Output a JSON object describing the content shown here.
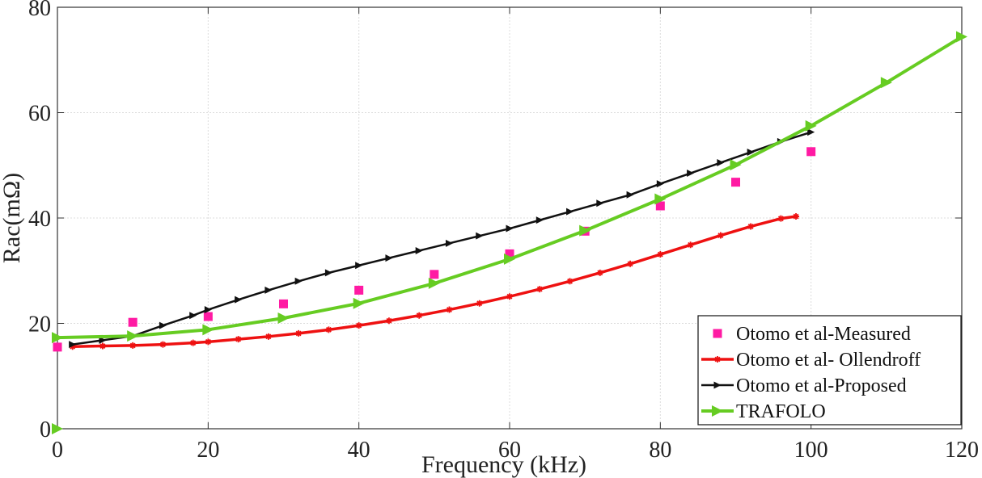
{
  "chart_data": {
    "type": "line",
    "title": "",
    "xlabel": "Frequency (kHz)",
    "ylabel": "Rac(mΩ)",
    "xlim": [
      0,
      120
    ],
    "ylim": [
      0,
      80
    ],
    "xticks": [
      "0",
      "20",
      "40",
      "60",
      "80",
      "100",
      "120"
    ],
    "yticks": [
      "0",
      "20",
      "40",
      "60",
      "80"
    ],
    "grid": true,
    "legend_position": "bottom-right",
    "series": [
      {
        "name": "Otomo et al-Measured",
        "style": "markers",
        "marker": "square",
        "color": "#ff1aa3",
        "x": [
          0,
          10,
          20,
          30,
          40,
          50,
          60,
          70,
          80,
          90,
          100
        ],
        "y": [
          15.5,
          20.2,
          21.3,
          23.7,
          26.3,
          29.3,
          33.2,
          37.5,
          42.3,
          46.8,
          52.6
        ]
      },
      {
        "name": "Otomo et al- Ollendroff",
        "style": "line",
        "marker": "asterisk",
        "color": "#ee1111",
        "x": [
          2,
          6,
          10,
          14,
          18,
          20,
          24,
          28,
          32,
          36,
          40,
          44,
          48,
          52,
          56,
          60,
          64,
          68,
          72,
          76,
          80,
          84,
          88,
          92,
          96,
          98
        ],
        "y": [
          15.6,
          15.7,
          15.8,
          16.0,
          16.3,
          16.5,
          17.0,
          17.5,
          18.1,
          18.8,
          19.6,
          20.5,
          21.5,
          22.6,
          23.8,
          25.1,
          26.5,
          28.0,
          29.6,
          31.3,
          33.1,
          34.9,
          36.7,
          38.4,
          39.9,
          40.3
        ]
      },
      {
        "name": "Otomo et al-Proposed",
        "style": "line",
        "marker": "triangle-right",
        "color": "#111111",
        "x": [
          2,
          6,
          10,
          14,
          18,
          20,
          24,
          28,
          32,
          36,
          40,
          44,
          48,
          52,
          56,
          60,
          64,
          68,
          72,
          76,
          80,
          84,
          88,
          92,
          96,
          100
        ],
        "y": [
          16.0,
          16.8,
          17.6,
          19.6,
          21.5,
          22.6,
          24.5,
          26.3,
          28.0,
          29.6,
          31.0,
          32.4,
          33.8,
          35.2,
          36.6,
          38.0,
          39.6,
          41.2,
          42.8,
          44.4,
          46.5,
          48.5,
          50.5,
          52.5,
          54.5,
          56.3
        ]
      },
      {
        "name": "TRAFOLO",
        "style": "line",
        "marker": "triangle-right",
        "color": "#66cc22",
        "x": [
          0,
          10,
          20,
          30,
          40,
          50,
          60,
          70,
          80,
          90,
          100,
          110,
          120
        ],
        "y": [
          17.3,
          17.6,
          18.8,
          21.0,
          23.8,
          27.6,
          32.2,
          37.6,
          43.6,
          50.1,
          57.5,
          65.7,
          74.4
        ]
      }
    ],
    "extra_points": [
      {
        "x": 0,
        "y": 0,
        "color": "#66cc22",
        "marker": "triangle-right"
      }
    ]
  }
}
